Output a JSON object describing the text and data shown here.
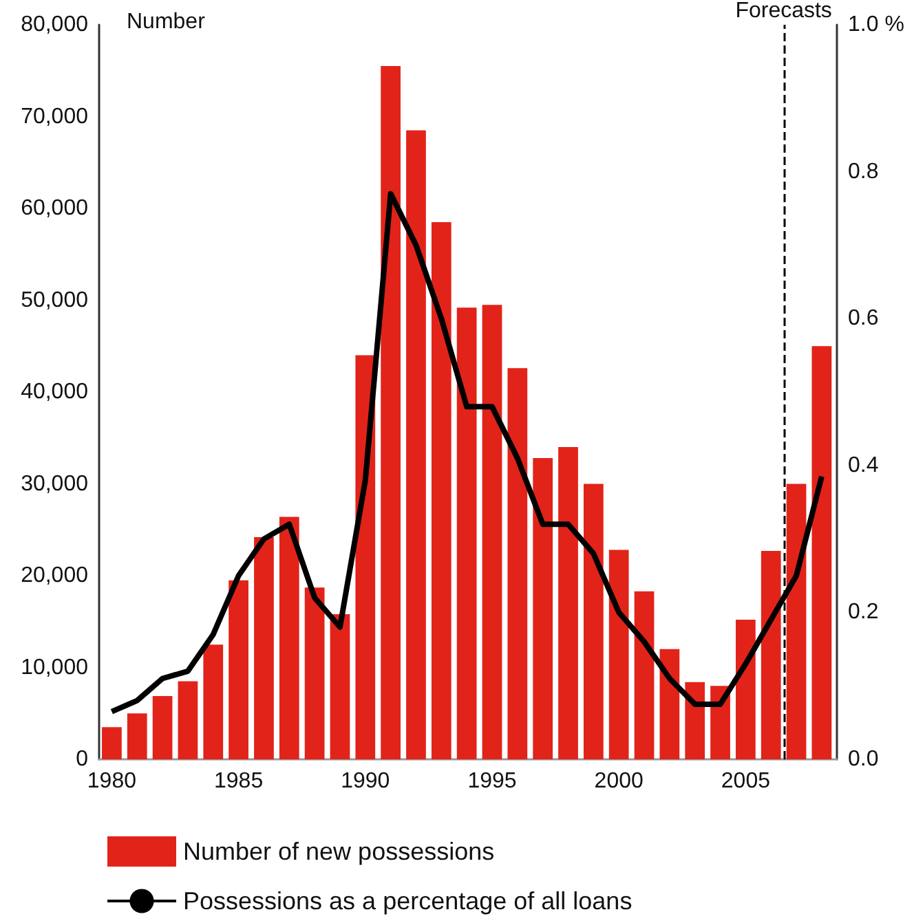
{
  "chart_data": {
    "type": "bar",
    "ylabel": "Number",
    "x": [
      1980,
      1981,
      1982,
      1983,
      1984,
      1985,
      1986,
      1987,
      1988,
      1989,
      1990,
      1991,
      1992,
      1993,
      1994,
      1995,
      1996,
      1997,
      1998,
      1999,
      2000,
      2001,
      2002,
      2003,
      2004,
      2005,
      2006,
      2007,
      2008
    ],
    "series": [
      {
        "name": "Number of new possessions",
        "color": "#e2231a",
        "values": [
          3500,
          5000,
          6900,
          8500,
          12500,
          19500,
          24200,
          26400,
          18700,
          15800,
          44000,
          75500,
          68500,
          58500,
          49200,
          49500,
          42600,
          32800,
          34000,
          30000,
          22800,
          18300,
          12000,
          8400,
          8000,
          15200,
          22700,
          30000,
          45000
        ]
      },
      {
        "name": "Possessions as a percentage of all loans",
        "type": "line",
        "axis": "y2",
        "color": "#000000",
        "values": [
          0.065,
          0.08,
          0.11,
          0.12,
          0.17,
          0.25,
          0.3,
          0.32,
          0.22,
          0.18,
          0.38,
          0.77,
          0.7,
          0.6,
          0.48,
          0.48,
          0.41,
          0.32,
          0.32,
          0.28,
          0.2,
          0.16,
          0.11,
          0.075,
          0.075,
          0.13,
          0.19,
          0.25,
          0.385
        ]
      }
    ],
    "xlim": [
      1979.5,
      2008.6
    ],
    "xticks": [
      1980,
      1985,
      1990,
      1995,
      2000,
      2005
    ],
    "ylim": [
      0,
      80000
    ],
    "yticks": [
      0,
      {
        "value": 10000,
        "label": "10,000"
      },
      {
        "value": 20000,
        "label": "20,000"
      },
      {
        "value": 30000,
        "label": "30,000"
      },
      {
        "value": 40000,
        "label": "40,000"
      },
      {
        "value": 50000,
        "label": "50,000"
      },
      {
        "value": 60000,
        "label": "60,000"
      },
      {
        "value": 70000,
        "label": "70,000"
      },
      {
        "value": 80000,
        "label": "80,000"
      }
    ],
    "y2lim": [
      0,
      1
    ],
    "y2ticks": [
      {
        "value": 0,
        "label": "0.0"
      },
      0.2,
      0.4,
      0.6,
      0.8,
      {
        "value": 1,
        "label": "1.0 %"
      }
    ],
    "ref_lines": [
      {
        "axis": "x",
        "value": 2006.5,
        "label": "Forecasts",
        "color": "#000000",
        "line_style": "dashed"
      }
    ],
    "grid": false,
    "legend": "bottom",
    "marker": "none"
  }
}
